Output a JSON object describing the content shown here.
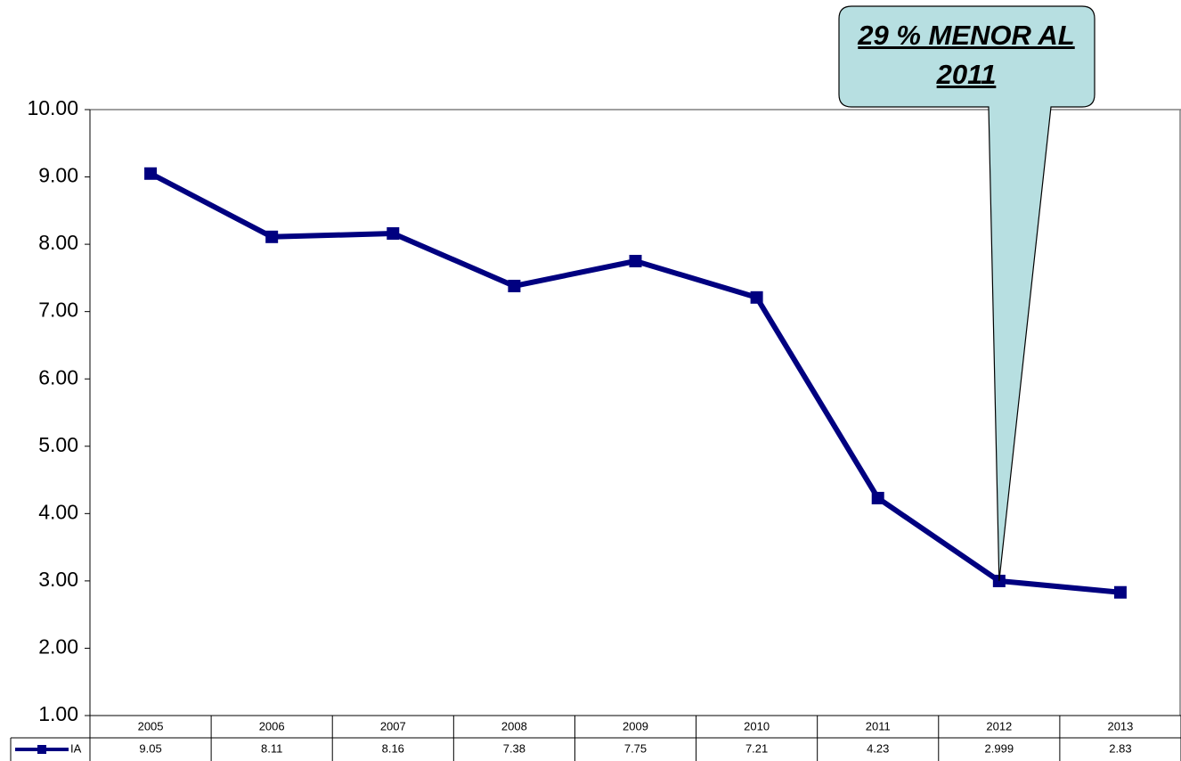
{
  "chart_data": {
    "type": "line",
    "annotation": "29 % MENOR AL 2011",
    "categories": [
      "2005",
      "2006",
      "2007",
      "2008",
      "2009",
      "2010",
      "2011",
      "2012",
      "2013"
    ],
    "series": [
      {
        "name": "IA",
        "color": "#000080",
        "values": [
          9.05,
          8.11,
          8.16,
          7.38,
          7.75,
          7.21,
          4.23,
          2.999,
          2.83
        ]
      }
    ],
    "ylim": [
      1,
      10
    ],
    "yticks": [
      {
        "value": 1,
        "label": "1.00"
      },
      {
        "value": 2,
        "label": "2.00"
      },
      {
        "value": 3,
        "label": "3.00"
      },
      {
        "value": 4,
        "label": "4.00"
      },
      {
        "value": 5,
        "label": "5.00"
      },
      {
        "value": 6,
        "label": "6.00"
      },
      {
        "value": 7,
        "label": "7.00"
      },
      {
        "value": 8,
        "label": "8.00"
      },
      {
        "value": 9,
        "label": "9.00"
      },
      {
        "value": 10,
        "label": "10.00"
      }
    ],
    "grid": false,
    "callout_color": "#b7dfe1"
  }
}
